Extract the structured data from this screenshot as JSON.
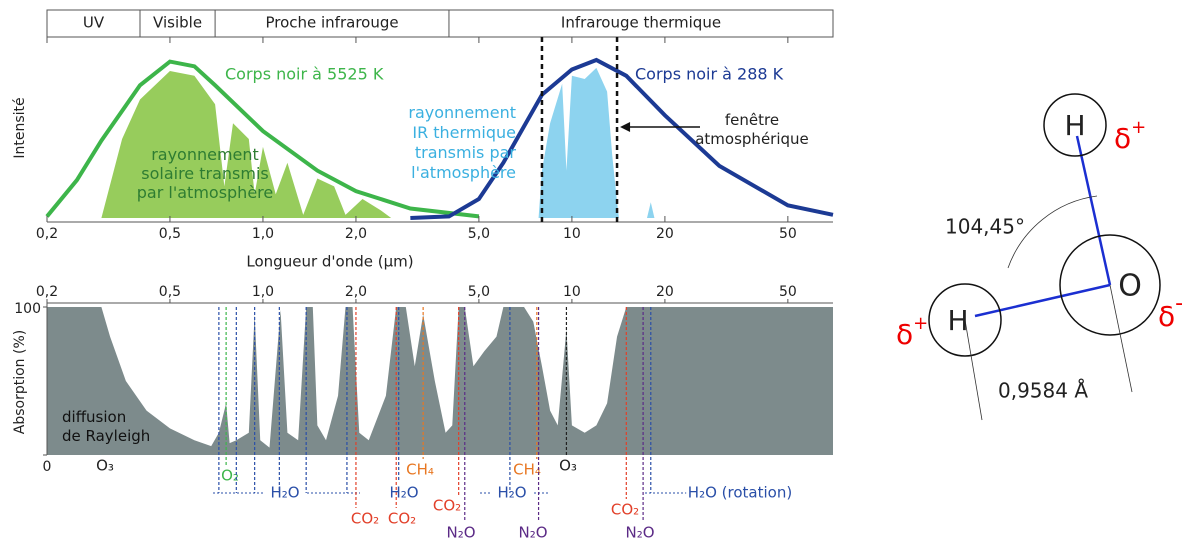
{
  "chart_data": [
    {
      "type": "line",
      "xscale": "log",
      "xlim": [
        0.2,
        70
      ],
      "ylim": [
        0,
        1
      ],
      "xticks": [
        {
          "value": 0.2,
          "label": "0,2"
        },
        {
          "value": 0.5,
          "label": "0,5"
        },
        {
          "value": 1.0,
          "label": "1,0"
        },
        {
          "value": 2.0,
          "label": "2,0"
        },
        {
          "value": 5.0,
          "label": "5,0"
        },
        10,
        20,
        50
      ],
      "ylabel": "Intensité",
      "xlabel": "Longueur d'onde (μm)",
      "bands": {
        "labels": [
          "UV",
          "Visible",
          "Proche infrarouge",
          "Infrarouge thermique"
        ],
        "edges": [
          0.2,
          0.4,
          0.7,
          4,
          70
        ]
      },
      "series": [
        {
          "style": "area",
          "color": "#97cc5c",
          "label_color": "#2e7d32",
          "label_lines": [
            "rayonnement",
            "solaire transmis",
            "par l'atmosphère"
          ],
          "x": [
            0.3,
            0.35,
            0.4,
            0.5,
            0.6,
            0.7,
            0.75,
            0.8,
            0.9,
            0.94,
            1.0,
            1.1,
            1.2,
            1.35,
            1.5,
            1.7,
            1.85,
            2.1,
            2.4,
            2.6
          ],
          "values": [
            0.0,
            0.5,
            0.75,
            0.93,
            0.9,
            0.72,
            0.2,
            0.6,
            0.5,
            0.15,
            0.45,
            0.15,
            0.35,
            0.02,
            0.25,
            0.2,
            0.02,
            0.12,
            0.05,
            0.0
          ]
        },
        {
          "style": "area",
          "color": "#8dd3ef",
          "label_color": "#3bb0e0",
          "label_lines": [
            "rayonnement",
            "IR thermique",
            "transmis par",
            "l'atmosphère"
          ],
          "x": [
            7.8,
            8,
            8.5,
            9.3,
            9.6,
            10,
            11,
            12,
            13,
            13.5,
            14,
            14.2,
            16,
            17.5,
            18,
            18.5
          ],
          "values": [
            0,
            0.3,
            0.6,
            0.85,
            0.3,
            0.9,
            0.88,
            0.95,
            0.8,
            0.4,
            0.1,
            0,
            null,
            0,
            0.1,
            0
          ]
        },
        {
          "style": "line",
          "name": "Corps noir à 5525 K",
          "color": "#3db54a",
          "x": [
            0.2,
            0.25,
            0.3,
            0.4,
            0.5,
            0.6,
            0.7,
            1.0,
            1.5,
            2.0,
            3.0,
            5.0
          ],
          "values": [
            0.01,
            0.24,
            0.49,
            0.84,
            0.99,
            0.96,
            0.84,
            0.55,
            0.3,
            0.17,
            0.06,
            0.01
          ]
        },
        {
          "style": "line",
          "name": "Corps noir à 288 K",
          "color": "#1c3a94",
          "x": [
            3,
            4,
            5,
            6,
            8,
            10,
            12,
            15,
            20,
            30,
            50,
            70
          ],
          "values": [
            0.0,
            0.01,
            0.12,
            0.35,
            0.78,
            0.94,
            1.0,
            0.9,
            0.65,
            0.33,
            0.08,
            0.02
          ]
        }
      ],
      "window": {
        "values": [
          8,
          14
        ],
        "label_lines": [
          "fenêtre",
          "atmosphérique"
        ]
      }
    },
    {
      "type": "area",
      "xscale": "log",
      "xlim": [
        0.2,
        70
      ],
      "ylim": [
        0,
        100
      ],
      "yticks": [
        0,
        100
      ],
      "xticks": [
        {
          "value": 0.2,
          "label": "0,2"
        },
        {
          "value": 0.5,
          "label": "0,5"
        },
        {
          "value": 1.0,
          "label": "1,0"
        },
        {
          "value": 2.0,
          "label": "2,0"
        },
        {
          "value": 5.0,
          "label": "5,0"
        },
        10,
        20,
        50
      ],
      "ylabel": "Absorption (%)",
      "annotation_lines": [
        "diffusion",
        "de Rayleigh"
      ],
      "series": [
        {
          "color": "#7d8b8c",
          "x": [
            0.2,
            0.3,
            0.32,
            0.36,
            0.42,
            0.5,
            0.6,
            0.68,
            0.72,
            0.76,
            0.78,
            0.82,
            0.9,
            0.94,
            0.98,
            1.05,
            1.14,
            1.2,
            1.3,
            1.38,
            1.45,
            1.5,
            1.6,
            1.75,
            1.85,
            1.95,
            2.05,
            2.2,
            2.5,
            2.7,
            2.9,
            3.1,
            3.3,
            3.6,
            3.9,
            4.1,
            4.3,
            4.5,
            4.8,
            5.2,
            5.7,
            6.0,
            7.0,
            7.5,
            8.0,
            8.5,
            9.0,
            9.6,
            10,
            11,
            12,
            13,
            14,
            15,
            20,
            70
          ],
          "values": [
            100,
            100,
            80,
            50,
            30,
            18,
            10,
            6,
            15,
            35,
            8,
            10,
            15,
            95,
            10,
            5,
            98,
            15,
            10,
            100,
            100,
            20,
            10,
            40,
            100,
            100,
            15,
            10,
            40,
            100,
            100,
            60,
            95,
            50,
            15,
            20,
            100,
            100,
            60,
            70,
            80,
            100,
            100,
            90,
            60,
            30,
            20,
            85,
            20,
            15,
            20,
            35,
            80,
            100,
            100,
            100
          ]
        }
      ],
      "absorbers": [
        {
          "label": "O₃",
          "color": "#222222",
          "lines": []
        },
        {
          "label": "O₂",
          "color": "#3db54a",
          "lines": [
            0.76
          ]
        },
        {
          "label": "H₂O",
          "color": "#2a4fa8",
          "lines": [
            0.72,
            0.82,
            0.94,
            1.13,
            1.38,
            1.87
          ]
        },
        {
          "label": "CO₂",
          "color": "#e2402a",
          "lines": [
            2.0
          ]
        },
        {
          "label": "CO₂",
          "color": "#e2402a",
          "lines": [
            2.7
          ]
        },
        {
          "label": "H₂O",
          "color": "#2a4fa8",
          "lines": [
            2.75
          ]
        },
        {
          "label": "CH₄",
          "color": "#e87722",
          "lines": [
            3.3
          ]
        },
        {
          "label": "CO₂",
          "color": "#e2402a",
          "lines": [
            4.3
          ]
        },
        {
          "label": "N₂O",
          "color": "#5b2a86",
          "lines": [
            4.5
          ]
        },
        {
          "label": "H₂O",
          "color": "#2a4fa8",
          "lines": [
            6.3
          ]
        },
        {
          "label": "CH₄",
          "color": "#e87722",
          "lines": [
            7.7
          ]
        },
        {
          "label": "N₂O",
          "color": "#5b2a86",
          "lines": [
            7.8
          ]
        },
        {
          "label": "O₃",
          "color": "#222222",
          "lines": [
            9.6
          ]
        },
        {
          "label": "CO₂",
          "color": "#e2402a",
          "lines": [
            15
          ]
        },
        {
          "label": "N₂O",
          "color": "#5b2a86",
          "lines": [
            17
          ]
        },
        {
          "label": "H₂O (rotation)",
          "color": "#2a4fa8",
          "lines": [
            18
          ]
        }
      ]
    }
  ],
  "molecule": {
    "atoms": [
      "H",
      "O",
      "H"
    ],
    "charges": [
      {
        "symbol": "δ",
        "sign": "+"
      },
      {
        "symbol": "δ",
        "sign": "-"
      },
      {
        "symbol": "δ",
        "sign": "+"
      }
    ],
    "angle": "104,45°",
    "bond_length": "0,9584  Å"
  }
}
